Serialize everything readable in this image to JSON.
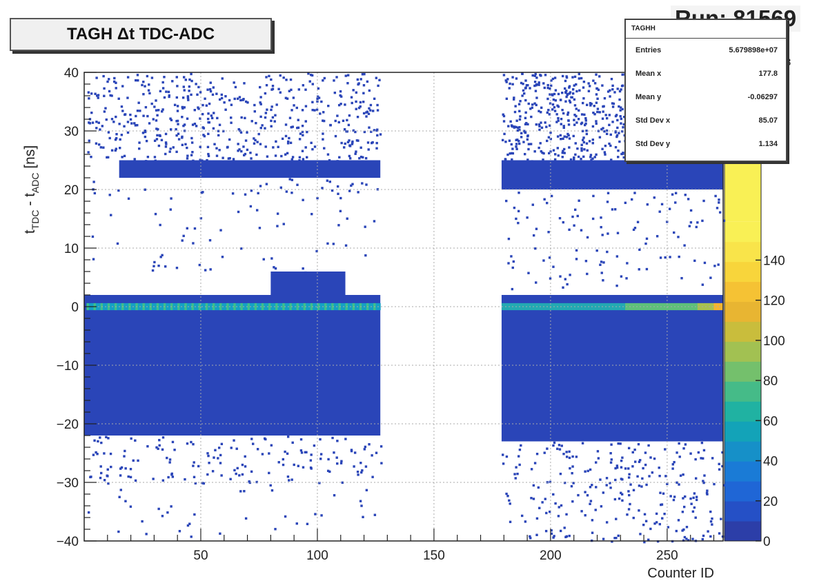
{
  "chart_data": {
    "type": "heatmap",
    "title": "TAGH Δt TDC-ADC",
    "run_label": "Run: 81569",
    "xlabel": "Counter ID",
    "ylabel_main": "t",
    "ylabel_sub1": "TDC",
    "ylabel_mid": " - t",
    "ylabel_sub2": "ADC",
    "ylabel_unit": " [ns]",
    "xlim": [
      0,
      274
    ],
    "ylim": [
      -40,
      40
    ],
    "x_ticks": [
      50,
      100,
      150,
      200,
      250
    ],
    "y_ticks": [
      -40,
      -30,
      -20,
      -10,
      0,
      10,
      20,
      30,
      40
    ],
    "color_ticks": [
      0,
      20,
      40,
      60,
      80,
      100,
      120,
      140
    ],
    "color_range": [
      0,
      160
    ],
    "color_exponent_fragment": "3",
    "grid": true,
    "stats_box": {
      "name": "TAGHH",
      "rows": [
        {
          "label": "Entries",
          "value": "5.679898e+07"
        },
        {
          "label": "Mean x",
          "value": "177.8"
        },
        {
          "label": "Mean y",
          "value": "-0.06297"
        },
        {
          "label": "Std Dev x",
          "value": "85.07"
        },
        {
          "label": "Std Dev y",
          "value": "1.134"
        }
      ]
    },
    "regions": [
      {
        "name": "left-core",
        "x": [
          0,
          127
        ],
        "y": [
          -22,
          2
        ]
      },
      {
        "name": "left-bump",
        "x": [
          80,
          112
        ],
        "y": [
          2,
          6
        ]
      },
      {
        "name": "left-upper-band",
        "x": [
          15,
          127
        ],
        "y": [
          22,
          25
        ]
      },
      {
        "name": "right-core",
        "x": [
          179,
          274
        ],
        "y": [
          -23,
          2
        ]
      },
      {
        "name": "right-upper-band",
        "x": [
          179,
          274
        ],
        "y": [
          20,
          25
        ]
      }
    ]
  }
}
